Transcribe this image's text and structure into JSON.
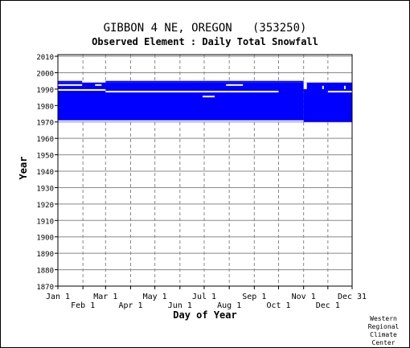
{
  "chart_data": {
    "type": "heatmap",
    "title": "GIBBON 4 NE, OREGON   (353250)",
    "subtitle": "Observed Element : Daily Total Snowfall",
    "xlabel": "Day of Year",
    "ylabel": "Year",
    "x_ticks_top": [
      "Jan 1",
      "Mar 1",
      "May 1",
      "Jul 1",
      "Sep 1",
      "Nov 1",
      "Dec 31"
    ],
    "x_ticks_bottom": [
      "Feb 1",
      "Apr 1",
      "Jun 1",
      "Aug 1",
      "Oct 1",
      "Dec 1"
    ],
    "x_tick_days": [
      1,
      32,
      60,
      91,
      121,
      152,
      182,
      213,
      244,
      274,
      305,
      335,
      365
    ],
    "y_ticks": [
      2010,
      2000,
      1990,
      1980,
      1970,
      1960,
      1950,
      1940,
      1930,
      1920,
      1910,
      1900,
      1890,
      1880,
      1870
    ],
    "ylim": [
      1870,
      2011
    ],
    "xlim": [
      1,
      365
    ],
    "grid": true,
    "data_color": "#0000ff",
    "coverage_blocks": [
      {
        "day_start": 1,
        "day_end": 305,
        "year_start": 1971,
        "year_end": 1994
      },
      {
        "day_start": 1,
        "day_end": 31,
        "year_start": 1994,
        "year_end": 1995
      },
      {
        "day_start": 60,
        "day_end": 305,
        "year_start": 1994,
        "year_end": 1995
      },
      {
        "day_start": 305,
        "day_end": 365,
        "year_start": 1970,
        "year_end": 1994
      }
    ],
    "gaps": [
      {
        "day_start": 1,
        "day_end": 31,
        "year_start": 1992,
        "year_end": 1993
      },
      {
        "day_start": 47,
        "day_end": 55,
        "year_start": 1992,
        "year_end": 1993
      },
      {
        "day_start": 209,
        "day_end": 230,
        "year_start": 1992,
        "year_end": 1993
      },
      {
        "day_start": 1,
        "day_end": 60,
        "year_start": 1989,
        "year_end": 1990
      },
      {
        "day_start": 60,
        "day_end": 274,
        "year_start": 1988,
        "year_end": 1989
      },
      {
        "day_start": 335,
        "day_end": 365,
        "year_start": 1988,
        "year_end": 1989
      },
      {
        "day_start": 180,
        "day_end": 195,
        "year_start": 1985,
        "year_end": 1986
      },
      {
        "day_start": 305,
        "day_end": 309,
        "year_start": 1990,
        "year_end": 1994
      },
      {
        "day_start": 328,
        "day_end": 330,
        "year_start": 1990,
        "year_end": 1992
      },
      {
        "day_start": 355,
        "day_end": 357,
        "year_start": 1990,
        "year_end": 1992
      }
    ],
    "credit": [
      "Western",
      "Regional",
      "Climate",
      "Center"
    ]
  }
}
